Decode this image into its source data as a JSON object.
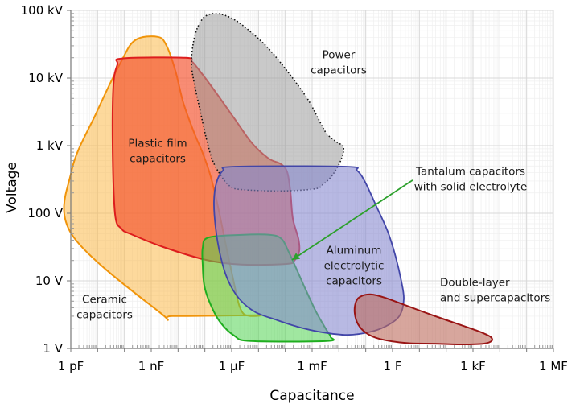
{
  "chart_data": {
    "type": "area",
    "title": "",
    "xlabel": "Capacitance",
    "ylabel": "Voltage",
    "x_scale": "log10_farads",
    "y_scale": "log10_volts",
    "xlim_log10": [
      -12,
      6
    ],
    "ylim_log10": [
      0,
      5
    ],
    "grid": "major+minor",
    "x_ticks": [
      {
        "log10": -12,
        "label": "1 pF"
      },
      {
        "log10": -9,
        "label": "1 nF"
      },
      {
        "log10": -6,
        "label": "1 µF"
      },
      {
        "log10": -3,
        "label": "1 mF"
      },
      {
        "log10": 0,
        "label": "1 F"
      },
      {
        "log10": 3,
        "label": "1 kF"
      },
      {
        "log10": 6,
        "label": "1 MF"
      }
    ],
    "y_ticks": [
      {
        "log10": 0,
        "label": "1 V"
      },
      {
        "log10": 1,
        "label": "10 V"
      },
      {
        "log10": 2,
        "label": "100 V"
      },
      {
        "log10": 3,
        "label": "1 kV"
      },
      {
        "log10": 4,
        "label": "10 kV"
      },
      {
        "log10": 5,
        "label": "100 kV"
      }
    ],
    "regions": [
      {
        "id": "ceramic",
        "label_lines": [
          "Ceramic",
          "capacitors"
        ],
        "label_pos": [
          -10.74,
          0.62
        ],
        "label_anchor": "middle",
        "fill": "#FCBA4B",
        "fill_opacity": 0.55,
        "stroke": "#F0940A",
        "stroke_width": 2,
        "dash": "",
        "points": [
          [
            -9.6,
            4.56
          ],
          [
            -8.76,
            4.61
          ],
          [
            -8.43,
            4.48
          ],
          [
            -8.1,
            4.11
          ],
          [
            -7.8,
            3.63
          ],
          [
            -7.38,
            3.17
          ],
          [
            -7.08,
            2.89
          ],
          [
            -6.78,
            2.54
          ],
          [
            -6.48,
            2.04
          ],
          [
            -6.18,
            1.46
          ],
          [
            -5.91,
            0.96
          ],
          [
            -5.73,
            0.65
          ],
          [
            -5.55,
            0.51
          ],
          [
            -5.28,
            0.48
          ],
          [
            -5.1,
            0.49
          ],
          [
            -8.19,
            0.48
          ],
          [
            -8.64,
            0.52
          ],
          [
            -11.97,
            1.69
          ],
          [
            -11.97,
            2.63
          ],
          [
            -11.04,
            3.49
          ],
          [
            -10.14,
            4.23
          ]
        ]
      },
      {
        "id": "plastic-film",
        "label_lines": [
          "Plastic film",
          "capacitors"
        ],
        "label_pos": [
          -8.76,
          2.93
        ],
        "label_anchor": "middle",
        "fill": "#F4512C",
        "fill_opacity": 0.66,
        "stroke": "#DD1D1D",
        "stroke_width": 2,
        "dash": "",
        "points": [
          [
            -10.26,
            4.2
          ],
          [
            -10.08,
            4.29
          ],
          [
            -7.74,
            4.3
          ],
          [
            -7.47,
            4.24
          ],
          [
            -7.08,
            4.05
          ],
          [
            -6.54,
            3.76
          ],
          [
            -5.88,
            3.39
          ],
          [
            -5.25,
            3.04
          ],
          [
            -4.62,
            2.81
          ],
          [
            -4.17,
            2.73
          ],
          [
            -3.93,
            2.61
          ],
          [
            -3.81,
            2.32
          ],
          [
            -3.72,
            1.92
          ],
          [
            -3.51,
            1.62
          ],
          [
            -3.48,
            1.44
          ],
          [
            -3.66,
            1.3
          ],
          [
            -3.96,
            1.25
          ],
          [
            -5.64,
            1.24
          ],
          [
            -6.96,
            1.31
          ],
          [
            -8.55,
            1.5
          ],
          [
            -9.75,
            1.69
          ],
          [
            -10.11,
            1.77
          ],
          [
            -10.35,
            1.99
          ],
          [
            -10.44,
            3.01
          ],
          [
            -10.41,
            3.9
          ]
        ]
      },
      {
        "id": "power",
        "label_lines": [
          "Power",
          "capacitors"
        ],
        "label_pos": [
          -2.01,
          4.24
        ],
        "label_anchor": "middle",
        "fill": "#9C9C9C",
        "fill_opacity": 0.55,
        "stroke": "#111111",
        "stroke_width": 1.6,
        "dash": "1.5 2.6",
        "points": [
          [
            -6.96,
            4.92
          ],
          [
            -6.48,
            4.95
          ],
          [
            -5.88,
            4.86
          ],
          [
            -5.28,
            4.68
          ],
          [
            -4.68,
            4.46
          ],
          [
            -4.08,
            4.18
          ],
          [
            -3.54,
            3.9
          ],
          [
            -3.09,
            3.64
          ],
          [
            -2.76,
            3.39
          ],
          [
            -2.46,
            3.18
          ],
          [
            -2.07,
            3.05
          ],
          [
            -1.83,
            2.98
          ],
          [
            -1.92,
            2.79
          ],
          [
            -2.25,
            2.56
          ],
          [
            -2.61,
            2.42
          ],
          [
            -2.91,
            2.36
          ],
          [
            -4.14,
            2.33
          ],
          [
            -5.64,
            2.35
          ],
          [
            -6.06,
            2.4
          ],
          [
            -6.39,
            2.55
          ],
          [
            -6.72,
            2.79
          ],
          [
            -6.96,
            3.13
          ],
          [
            -7.17,
            3.51
          ],
          [
            -7.38,
            3.89
          ],
          [
            -7.5,
            4.2
          ],
          [
            -7.44,
            4.5
          ],
          [
            -7.26,
            4.76
          ]
        ]
      },
      {
        "id": "tantalum",
        "label_lines": [],
        "label_pos": null,
        "label_anchor": "middle",
        "fill": "#52D452",
        "fill_opacity": 0.55,
        "stroke": "#1FAE1F",
        "stroke_width": 2,
        "dash": "",
        "points": [
          [
            -6.87,
            1.64
          ],
          [
            -5.64,
            1.68
          ],
          [
            -4.56,
            1.68
          ],
          [
            -4.14,
            1.62
          ],
          [
            -3.9,
            1.45
          ],
          [
            -3.6,
            1.19
          ],
          [
            -3.24,
            0.87
          ],
          [
            -2.85,
            0.54
          ],
          [
            -2.49,
            0.29
          ],
          [
            -2.31,
            0.17
          ],
          [
            -2.46,
            0.11
          ],
          [
            -5.28,
            0.11
          ],
          [
            -5.91,
            0.19
          ],
          [
            -6.45,
            0.4
          ],
          [
            -6.81,
            0.67
          ],
          [
            -7.02,
            0.93
          ],
          [
            -7.08,
            1.23
          ],
          [
            -7.08,
            1.49
          ]
        ]
      },
      {
        "id": "aluminum-electrolytic",
        "label_lines": [
          "Aluminum",
          "electrolytic",
          "capacitors"
        ],
        "label_pos": [
          -1.44,
          1.23
        ],
        "label_anchor": "middle",
        "fill": "#8487CF",
        "fill_opacity": 0.58,
        "stroke": "#4246A8",
        "stroke_width": 1.8,
        "dash": "",
        "points": [
          [
            -5.88,
            2.69
          ],
          [
            -1.74,
            2.69
          ],
          [
            -1.32,
            2.63
          ],
          [
            -1.02,
            2.46
          ],
          [
            -0.6,
            2.1
          ],
          [
            -0.18,
            1.73
          ],
          [
            0.12,
            1.35
          ],
          [
            0.33,
            0.99
          ],
          [
            0.42,
            0.73
          ],
          [
            0.27,
            0.49
          ],
          [
            -0.15,
            0.35
          ],
          [
            -0.78,
            0.25
          ],
          [
            -1.68,
            0.2
          ],
          [
            -2.64,
            0.24
          ],
          [
            -3.54,
            0.32
          ],
          [
            -4.32,
            0.42
          ],
          [
            -5.13,
            0.54
          ],
          [
            -5.73,
            0.74
          ],
          [
            -6.15,
            1.02
          ],
          [
            -6.42,
            1.37
          ],
          [
            -6.6,
            1.79
          ],
          [
            -6.66,
            2.18
          ],
          [
            -6.57,
            2.45
          ],
          [
            -6.33,
            2.63
          ]
        ]
      },
      {
        "id": "double-layer",
        "label_lines": [
          "Double-layer",
          "and supercapacitors"
        ],
        "label_pos": [
          1.77,
          0.87
        ],
        "label_anchor": "start",
        "fill": "#BC6A5C",
        "fill_opacity": 0.6,
        "stroke": "#991414",
        "stroke_width": 2,
        "dash": "",
        "points": [
          [
            -1.23,
            0.76
          ],
          [
            -0.84,
            0.8
          ],
          [
            -0.36,
            0.76
          ],
          [
            0.27,
            0.67
          ],
          [
            1.02,
            0.56
          ],
          [
            1.86,
            0.44
          ],
          [
            2.67,
            0.33
          ],
          [
            3.3,
            0.24
          ],
          [
            3.66,
            0.17
          ],
          [
            3.69,
            0.11
          ],
          [
            3.39,
            0.07
          ],
          [
            2.61,
            0.06
          ],
          [
            1.56,
            0.07
          ],
          [
            0.51,
            0.08
          ],
          [
            -0.48,
            0.14
          ],
          [
            -0.99,
            0.23
          ],
          [
            -1.29,
            0.36
          ],
          [
            -1.41,
            0.52
          ],
          [
            -1.38,
            0.67
          ]
        ]
      }
    ],
    "annotation": {
      "lines": [
        "Tantalum capacitors",
        "with solid electrolyte"
      ],
      "text_pos": [
        2.91,
        2.51
      ],
      "arrow_from": [
        0.75,
        2.49
      ],
      "arrow_to": [
        -3.75,
        1.31
      ],
      "color": "#2CA02C"
    },
    "style": {
      "axis_color": "#777777",
      "major_grid_color": "#d8d8d8",
      "minor_grid_color": "#efefef",
      "tick_label_color": "#000000",
      "label_color": "#1a1a1a"
    }
  }
}
